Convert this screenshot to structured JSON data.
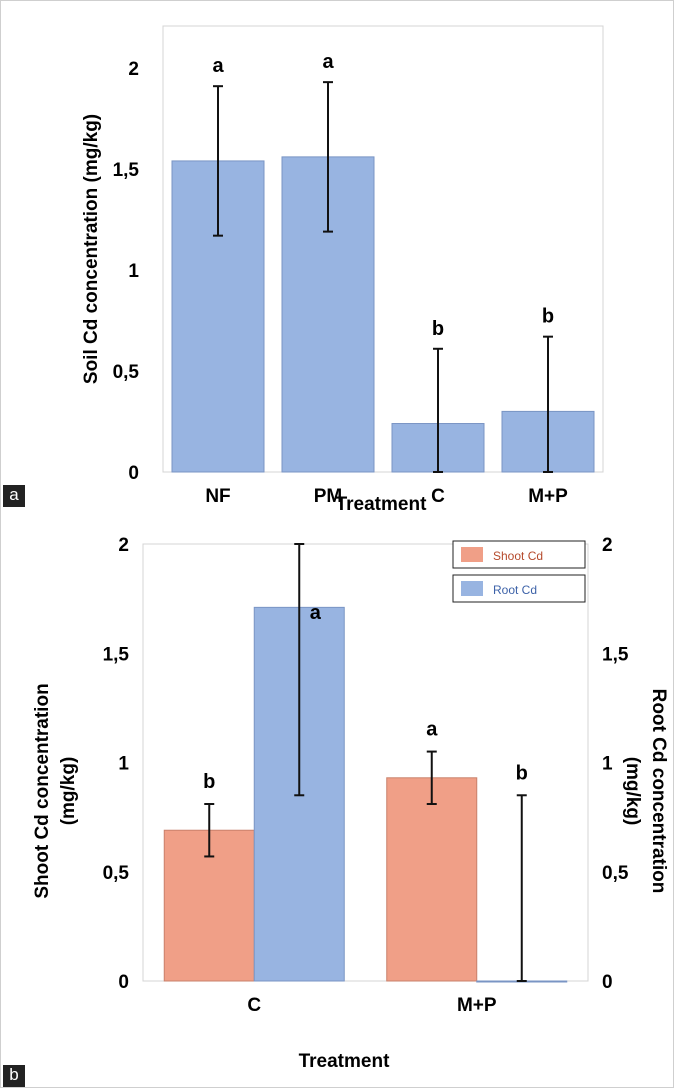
{
  "panels": {
    "a": {
      "tag": "a"
    },
    "b": {
      "tag": "b"
    }
  },
  "chart_data": [
    {
      "type": "bar",
      "categories": [
        "NF",
        "PM",
        "C",
        "M+P"
      ],
      "values": [
        1.54,
        1.56,
        0.24,
        0.3
      ],
      "errors": [
        0.37,
        0.37,
        0.37,
        0.37
      ],
      "significance": [
        "a",
        "a",
        "b",
        "b"
      ],
      "xlabel": "Treatment",
      "ylabel": "Soil Cd concentration (mg/kg)",
      "ylim": [
        0,
        2.2
      ],
      "yticks": [
        "0",
        "0,5",
        "1",
        "1,5",
        "2"
      ],
      "ytick_values": [
        0,
        0.5,
        1,
        1.5,
        2
      ],
      "bar_color": "#98b4e1",
      "grid": false
    },
    {
      "type": "bar",
      "categories": [
        "C",
        "M+P"
      ],
      "series": [
        {
          "name": "Shoot Cd",
          "values": [
            0.69,
            0.93
          ],
          "errors": [
            0.12,
            0.12
          ],
          "significance": [
            "b",
            "a"
          ],
          "color": "#f09f87",
          "axis": "left"
        },
        {
          "name": "Root Cd",
          "values": [
            1.71,
            0.0
          ],
          "errors": [
            0.86,
            0.85
          ],
          "significance": [
            "a",
            "b"
          ],
          "color": "#98b4e1",
          "axis": "right"
        }
      ],
      "xlabel": "Treatment",
      "ylabel": "Shoot Cd concentration (mg/kg)",
      "ylabel_lines": [
        "Shoot Cd concentration",
        "(mg/kg)"
      ],
      "y2label": "Root Cd concentration (mg/kg)",
      "y2label_lines": [
        "Root Cd concentration",
        "(mg/kg)"
      ],
      "ylim": [
        0,
        2
      ],
      "yticks": [
        "0",
        "0,5",
        "1",
        "1,5",
        "2"
      ],
      "ytick_values": [
        0,
        0.5,
        1,
        1.5,
        2
      ],
      "legend": "top-right",
      "grid": false
    }
  ]
}
